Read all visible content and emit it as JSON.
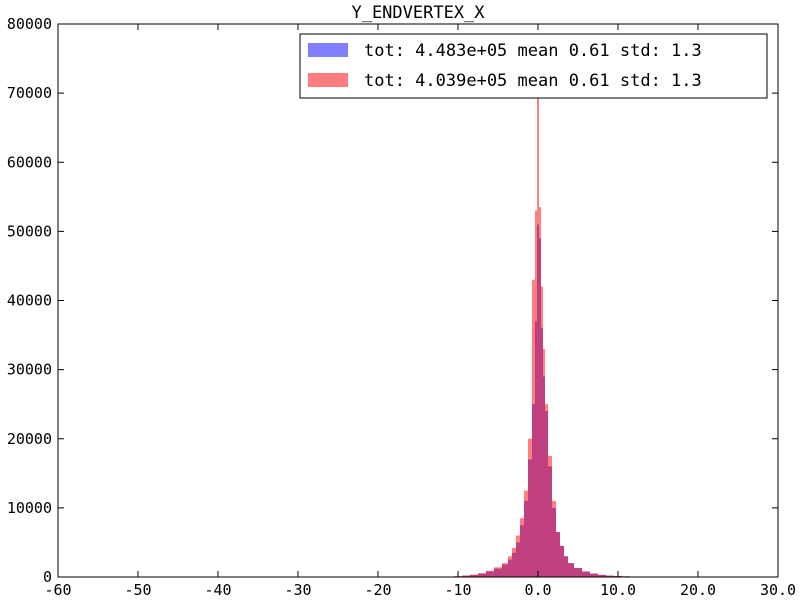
{
  "chart_data": {
    "type": "bar",
    "title": "Y_ENDVERTEX_X",
    "xlabel": "",
    "ylabel": "",
    "xlim": [
      -60,
      30
    ],
    "ylim": [
      0,
      80000
    ],
    "x_tick_values": [
      -60,
      -50,
      -40,
      -30,
      -20,
      -10,
      0,
      10,
      20,
      30
    ],
    "x_tick_labels": [
      "-60",
      "-50",
      "-40",
      "-30",
      "-20",
      "-10",
      "0.0",
      "10.0",
      "20.0",
      "30.0"
    ],
    "y_tick_values": [
      0,
      10000,
      20000,
      30000,
      40000,
      50000,
      60000,
      70000,
      80000
    ],
    "y_tick_labels": [
      "0",
      "10000",
      "20000",
      "30000",
      "40000",
      "50000",
      "60000",
      "70000",
      "80000"
    ],
    "grid": false,
    "legend_position": "top-right",
    "series": [
      {
        "label": "tot: 4.483e+05 mean 0.61 std: 1.3",
        "color": "#0000ff",
        "alpha": 0.5,
        "bins": [
          [
            -10.0,
            100
          ],
          [
            -9.0,
            200
          ],
          [
            -8.0,
            300
          ],
          [
            -7.0,
            500
          ],
          [
            -6.0,
            800
          ],
          [
            -5.0,
            1200
          ],
          [
            -4.0,
            1800
          ],
          [
            -3.5,
            2500
          ],
          [
            -3.0,
            3500
          ],
          [
            -2.5,
            5000
          ],
          [
            -2.0,
            7500
          ],
          [
            -1.5,
            11000
          ],
          [
            -1.0,
            17000
          ],
          [
            -0.5,
            25000
          ],
          [
            -0.25,
            37000
          ],
          [
            0.0,
            51000
          ],
          [
            0.25,
            49000
          ],
          [
            0.5,
            36000
          ],
          [
            0.75,
            29000
          ],
          [
            1.0,
            24000
          ],
          [
            1.5,
            16000
          ],
          [
            2.0,
            10000
          ],
          [
            2.5,
            6500
          ],
          [
            3.0,
            4500
          ],
          [
            3.5,
            3000
          ],
          [
            4.0,
            2000
          ],
          [
            5.0,
            1300
          ],
          [
            6.0,
            800
          ],
          [
            7.0,
            500
          ],
          [
            8.0,
            300
          ],
          [
            9.0,
            200
          ],
          [
            10.0,
            150
          ],
          [
            11.0,
            100
          ],
          [
            12.0,
            60
          ]
        ]
      },
      {
        "label": "tot: 4.039e+05 mean 0.61 std: 1.3",
        "color": "#ff0000",
        "alpha": 0.5,
        "bins": [
          [
            -10.0,
            120
          ],
          [
            -9.0,
            220
          ],
          [
            -8.0,
            330
          ],
          [
            -7.0,
            550
          ],
          [
            -6.0,
            900
          ],
          [
            -5.0,
            1400
          ],
          [
            -4.0,
            2000
          ],
          [
            -3.5,
            3000
          ],
          [
            -3.0,
            4200
          ],
          [
            -2.5,
            6000
          ],
          [
            -2.0,
            8500
          ],
          [
            -1.5,
            12500
          ],
          [
            -1.0,
            20000
          ],
          [
            -0.5,
            43000
          ],
          [
            -0.25,
            53000
          ],
          [
            0.0,
            71000
          ],
          [
            0.25,
            53500
          ],
          [
            0.5,
            42000
          ],
          [
            0.75,
            33000
          ],
          [
            1.0,
            25000
          ],
          [
            1.5,
            17500
          ],
          [
            2.0,
            11000
          ],
          [
            2.5,
            6500
          ],
          [
            3.0,
            4500
          ],
          [
            3.5,
            3000
          ],
          [
            4.0,
            2000
          ],
          [
            5.0,
            1300
          ],
          [
            6.0,
            800
          ],
          [
            7.0,
            500
          ],
          [
            8.0,
            300
          ],
          [
            9.0,
            200
          ],
          [
            10.0,
            150
          ],
          [
            11.0,
            100
          ],
          [
            12.0,
            60
          ]
        ]
      }
    ]
  }
}
